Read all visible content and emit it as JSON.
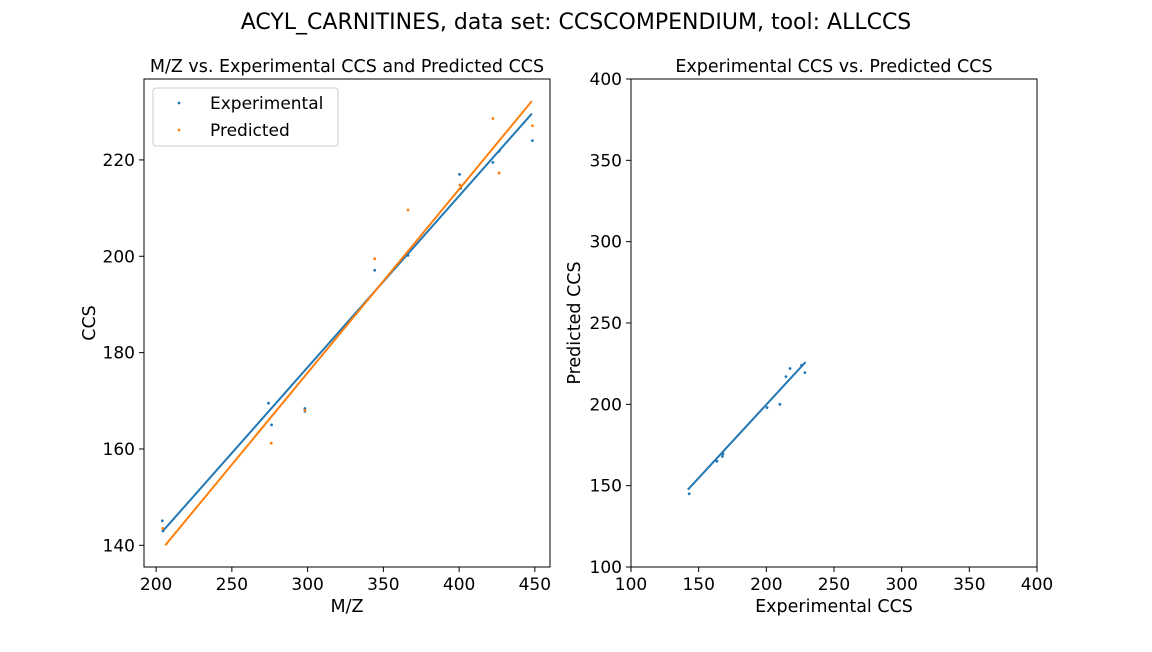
{
  "figure": {
    "suptitle": "ACYL_CARNITINES, data set: CCSCOMPENDIUM, tool: ALLCCS"
  },
  "colors": {
    "experimental": "#1f77b4",
    "predicted": "#ff7f0e",
    "axis": "#000000",
    "background": "#ffffff"
  },
  "chart_data": [
    {
      "type": "scatter",
      "title": "M/Z vs. Experimental CCS and Predicted CCS",
      "xlabel": "M/Z",
      "ylabel": "CCS",
      "xlim": [
        192,
        460
      ],
      "ylim": [
        135.5,
        236.8
      ],
      "xticks": [
        200,
        250,
        300,
        350,
        400,
        450
      ],
      "yticks": [
        140,
        160,
        180,
        200,
        220
      ],
      "grid": false,
      "legend": {
        "position": "upper-left",
        "entries": [
          "Experimental",
          "Predicted"
        ]
      },
      "series": [
        {
          "name": "Experimental",
          "color": "#1f77b4",
          "points": [
            [
              204.1,
              145.1
            ],
            [
              204.5,
              143.0
            ],
            [
              274.2,
              169.5
            ],
            [
              276.2,
              165.0
            ],
            [
              298.2,
              168.4
            ],
            [
              298.2,
              167.8
            ],
            [
              344.3,
              197.1
            ],
            [
              366.3,
              200.2
            ],
            [
              400.3,
              217.0
            ],
            [
              401.0,
              214.1
            ],
            [
              422.3,
              219.5
            ],
            [
              426.4,
              221.8
            ],
            [
              448.4,
              224.0
            ]
          ],
          "fit": {
            "x": [
              204.0,
              448.0
            ],
            "y": [
              142.8,
              229.6
            ]
          }
        },
        {
          "name": "Predicted",
          "color": "#ff7f0e",
          "points": [
            [
              204.5,
              143.5
            ],
            [
              276.0,
              161.2
            ],
            [
              298.2,
              168.0
            ],
            [
              344.3,
              199.5
            ],
            [
              366.3,
              209.6
            ],
            [
              400.5,
              214.8
            ],
            [
              422.3,
              228.6
            ],
            [
              426.4,
              217.3
            ],
            [
              448.4,
              227.1
            ]
          ],
          "fit": {
            "x": [
              206.0,
              448.0
            ],
            "y": [
              140.0,
              232.2
            ]
          }
        }
      ]
    },
    {
      "type": "scatter",
      "title": "Experimental CCS vs. Predicted CCS",
      "xlabel": "Experimental CCS",
      "ylabel": "Predicted CCS",
      "xlim": [
        100,
        400
      ],
      "ylim": [
        100,
        400
      ],
      "xticks": [
        100,
        150,
        200,
        250,
        300,
        350,
        400
      ],
      "yticks": [
        100,
        150,
        200,
        250,
        300,
        350,
        400
      ],
      "grid": false,
      "series": [
        {
          "name": "",
          "color": "#1f77b4",
          "points": [
            [
              143.0,
              145.0
            ],
            [
              163.5,
              165.0
            ],
            [
              167.5,
              168.0
            ],
            [
              168.0,
              169.5
            ],
            [
              200.5,
              198.0
            ],
            [
              210.0,
              200.0
            ],
            [
              214.5,
              217.0
            ],
            [
              217.5,
              222.0
            ],
            [
              226.0,
              224.0
            ],
            [
              228.5,
              219.5
            ]
          ],
          "fit": {
            "x": [
              142.0,
              229.0
            ],
            "y": [
              147.5,
              226.0
            ]
          }
        }
      ]
    }
  ]
}
